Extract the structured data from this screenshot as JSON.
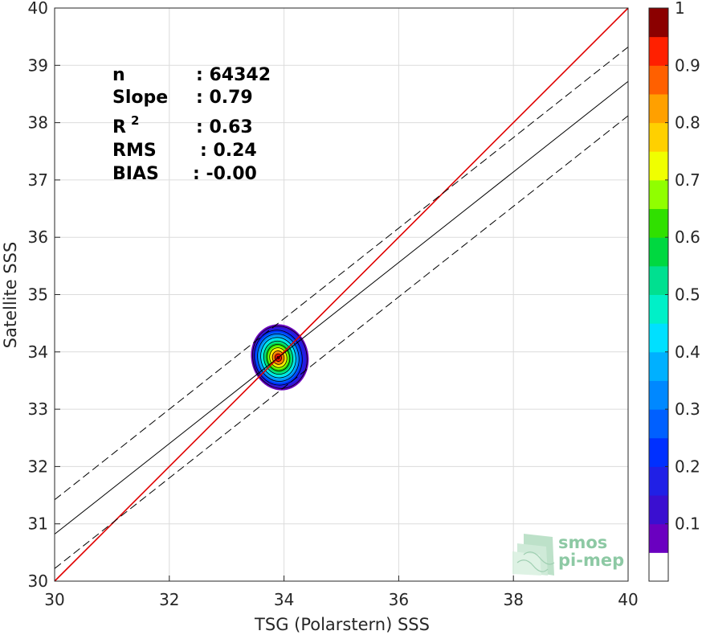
{
  "chart_data": {
    "type": "scatter",
    "title": "",
    "xlabel": "TSG (Polarstern) SSS",
    "ylabel": "Satellite SSS",
    "xlim": [
      30,
      40
    ],
    "ylim": [
      30,
      40
    ],
    "xticks": [
      "30",
      "32",
      "34",
      "36",
      "38",
      "40"
    ],
    "yticks": [
      "30",
      "31",
      "32",
      "33",
      "34",
      "35",
      "36",
      "37",
      "38",
      "39",
      "40"
    ],
    "grid": true,
    "density_center": {
      "x": 33.9,
      "y": 33.9
    },
    "lines": [
      {
        "name": "one-to-one",
        "style": "solid",
        "color": "#e00000",
        "x": [
          30,
          40
        ],
        "y": [
          30,
          40
        ]
      },
      {
        "name": "regression",
        "style": "solid",
        "color": "#000000",
        "x": [
          30,
          40
        ],
        "y": [
          30.82,
          38.72
        ]
      },
      {
        "name": "regression-plus-std",
        "style": "dashed",
        "color": "#000000",
        "x": [
          30,
          40
        ],
        "y": [
          31.42,
          39.32
        ]
      },
      {
        "name": "regression-minus-std",
        "style": "dashed",
        "color": "#000000",
        "x": [
          30,
          40
        ],
        "y": [
          30.22,
          38.12
        ]
      }
    ],
    "stats": [
      {
        "label": "n",
        "value": ": 64342"
      },
      {
        "label": "Slope",
        "value": ": 0.79"
      },
      {
        "label": "R",
        "sup": "2",
        "value": ": 0.63"
      },
      {
        "label": "RMS",
        "value": ": 0.24"
      },
      {
        "label": "BIAS",
        "value": ": -0.00"
      }
    ],
    "colorbar": {
      "range": [
        0,
        1
      ],
      "ticks": [
        "0.1",
        "0.2",
        "0.3",
        "0.4",
        "0.5",
        "0.6",
        "0.7",
        "0.8",
        "0.9",
        "1"
      ],
      "levels": 20,
      "colors": [
        "#ffffff",
        "#6a00c0",
        "#3a0fd0",
        "#2020e6",
        "#0030ff",
        "#0060ff",
        "#0088ff",
        "#00b0ff",
        "#00e0ff",
        "#00f0c8",
        "#00e090",
        "#00d840",
        "#30e000",
        "#90ff00",
        "#f0ff00",
        "#ffd000",
        "#ffa000",
        "#ff6000",
        "#ff2000",
        "#e80000",
        "#8b0000"
      ]
    }
  },
  "logo": {
    "line1": "smos",
    "line2": "pi-mep"
  }
}
